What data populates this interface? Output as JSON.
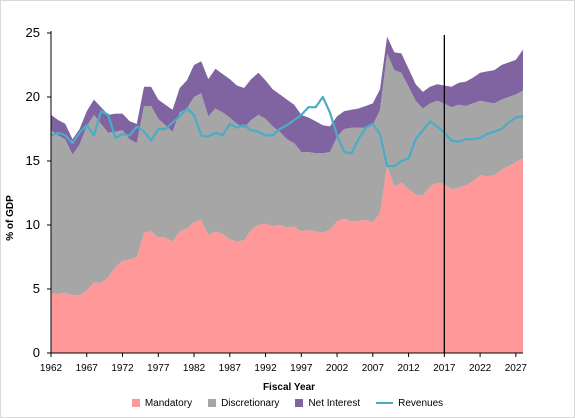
{
  "colors": {
    "mandatory": "#ff9999",
    "discretionary": "#a6a6a6",
    "net_interest": "#8064a2",
    "revenues": "#4bacc6",
    "marker": "#000000"
  },
  "chart_data": {
    "type": "area",
    "title": "",
    "xlabel": "Fiscal Year",
    "ylabel": "% of GDP",
    "xlim": [
      1962,
      2028
    ],
    "ylim": [
      0,
      25
    ],
    "yticks": [
      "0",
      "5",
      "10",
      "15",
      "20",
      "25"
    ],
    "xticks": [
      "1962",
      "1967",
      "1972",
      "1977",
      "1982",
      "1987",
      "1992",
      "1997",
      "2002",
      "2007",
      "2012",
      "2017",
      "2022",
      "2027"
    ],
    "grid": false,
    "legend_position": "bottom",
    "vertical_marker_x": 2017,
    "x": [
      1962,
      1963,
      1964,
      1965,
      1966,
      1967,
      1968,
      1969,
      1970,
      1971,
      1972,
      1973,
      1974,
      1975,
      1976,
      1977,
      1978,
      1979,
      1980,
      1981,
      1982,
      1983,
      1984,
      1985,
      1986,
      1987,
      1988,
      1989,
      1990,
      1991,
      1992,
      1993,
      1994,
      1995,
      1996,
      1997,
      1998,
      1999,
      2000,
      2001,
      2002,
      2003,
      2004,
      2005,
      2006,
      2007,
      2008,
      2009,
      2010,
      2011,
      2012,
      2013,
      2014,
      2015,
      2016,
      2017,
      2018,
      2019,
      2020,
      2021,
      2022,
      2023,
      2024,
      2025,
      2026,
      2027,
      2028
    ],
    "series": [
      {
        "name": "Mandatory",
        "kind": "area",
        "values": [
          4.7,
          4.6,
          4.7,
          4.5,
          4.5,
          4.9,
          5.5,
          5.5,
          5.9,
          6.7,
          7.2,
          7.3,
          7.5,
          9.4,
          9.5,
          9.0,
          9.0,
          8.7,
          9.5,
          9.7,
          10.2,
          10.4,
          9.2,
          9.5,
          9.3,
          8.9,
          8.7,
          8.8,
          9.6,
          10.0,
          10.1,
          9.9,
          10.0,
          9.8,
          9.9,
          9.5,
          9.6,
          9.5,
          9.4,
          9.6,
          10.3,
          10.5,
          10.3,
          10.3,
          10.4,
          10.2,
          10.9,
          14.6,
          13.0,
          13.3,
          12.8,
          12.4,
          12.3,
          13.0,
          13.3,
          13.2,
          12.8,
          12.9,
          13.1,
          13.4,
          13.9,
          13.8,
          13.9,
          14.3,
          14.6,
          14.9,
          15.2
        ]
      },
      {
        "name": "Discretionary",
        "kind": "area",
        "values": [
          12.7,
          12.4,
          12.0,
          11.0,
          11.8,
          12.8,
          13.1,
          12.4,
          11.3,
          10.6,
          10.2,
          9.4,
          8.9,
          9.9,
          9.8,
          9.3,
          8.8,
          8.6,
          9.3,
          9.4,
          9.8,
          9.9,
          9.3,
          9.6,
          9.5,
          9.5,
          9.2,
          8.8,
          8.6,
          8.6,
          8.2,
          7.8,
          7.3,
          6.9,
          6.5,
          6.2,
          6.1,
          6.1,
          6.2,
          6.1,
          6.6,
          7.0,
          7.3,
          7.3,
          7.2,
          7.6,
          8.1,
          8.8,
          9.1,
          8.6,
          8.0,
          7.3,
          6.8,
          6.5,
          6.4,
          6.3,
          6.4,
          6.5,
          6.2,
          6.1,
          5.8,
          5.8,
          5.6,
          5.5,
          5.4,
          5.3,
          5.3
        ]
      },
      {
        "name": "Net Interest",
        "kind": "area",
        "values": [
          1.2,
          1.2,
          1.2,
          1.2,
          1.2,
          1.2,
          1.2,
          1.3,
          1.4,
          1.4,
          1.3,
          1.4,
          1.5,
          1.5,
          1.5,
          1.5,
          1.6,
          1.7,
          1.9,
          2.2,
          2.5,
          2.5,
          2.9,
          3.1,
          3.0,
          3.0,
          3.0,
          3.1,
          3.2,
          3.3,
          3.0,
          2.9,
          2.9,
          3.1,
          3.0,
          2.9,
          2.7,
          2.5,
          2.2,
          2.0,
          1.6,
          1.4,
          1.4,
          1.5,
          1.7,
          1.7,
          1.6,
          1.3,
          1.4,
          1.5,
          1.4,
          1.3,
          1.3,
          1.3,
          1.3,
          1.4,
          1.6,
          1.7,
          1.9,
          2.0,
          2.2,
          2.4,
          2.6,
          2.7,
          2.7,
          2.7,
          3.2
        ]
      },
      {
        "name": "Revenues",
        "kind": "line",
        "values": [
          17.0,
          17.2,
          17.0,
          16.4,
          17.2,
          17.8,
          17.0,
          18.9,
          18.6,
          16.8,
          17.1,
          17.0,
          17.7,
          17.3,
          16.6,
          17.5,
          17.5,
          18.0,
          18.5,
          19.1,
          18.6,
          17.0,
          16.9,
          17.2,
          17.0,
          17.9,
          17.6,
          17.8,
          17.4,
          17.3,
          17.0,
          17.0,
          17.5,
          17.8,
          18.2,
          18.6,
          19.2,
          19.2,
          20.0,
          18.8,
          17.0,
          15.7,
          15.6,
          16.7,
          17.6,
          17.9,
          17.1,
          14.6,
          14.6,
          15.0,
          15.2,
          16.7,
          17.4,
          18.1,
          17.7,
          17.2,
          16.6,
          16.5,
          16.7,
          16.7,
          16.8,
          17.1,
          17.3,
          17.5,
          18.0,
          18.4,
          18.5
        ]
      }
    ]
  }
}
